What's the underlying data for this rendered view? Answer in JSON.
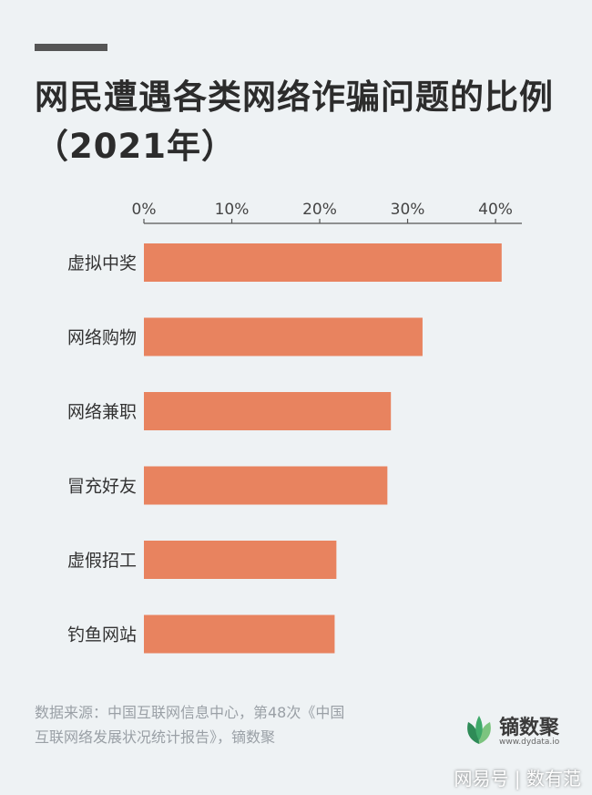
{
  "title_lines": [
    "网民遭遇各类网络诈骗问题的比例",
    "（2021年）"
  ],
  "source": {
    "line1": "数据来源：中国互联网信息中心，第48次《中国",
    "line2": "互联网络发展状况统计报告》，镝数聚"
  },
  "brand": {
    "name": "镝数聚",
    "url": "www.dydata.io",
    "icon": "leaf-logo-icon"
  },
  "watermark": "网易号 | 数有范",
  "colors": {
    "bar": "#e8835f",
    "background": "#eef2f4",
    "title": "#2c2c2c",
    "axis": "#555555",
    "logo_dark": "#2e8b57",
    "logo_light": "#7cc47f"
  },
  "chart_data": {
    "type": "bar",
    "orientation": "horizontal",
    "categories": [
      "虚拟中奖",
      "网络购物",
      "网络兼职",
      "冒充好友",
      "虚假招工",
      "钓鱼网站"
    ],
    "values": [
      40.7,
      31.7,
      28.1,
      27.7,
      21.9,
      21.7
    ],
    "xlim": [
      0,
      43
    ],
    "xticks": [
      "0%",
      "10%",
      "20%",
      "30%",
      "40%"
    ],
    "xtick_values": [
      0,
      10,
      20,
      30,
      40
    ],
    "axis_position": "top",
    "grid": false,
    "legend": "none"
  }
}
